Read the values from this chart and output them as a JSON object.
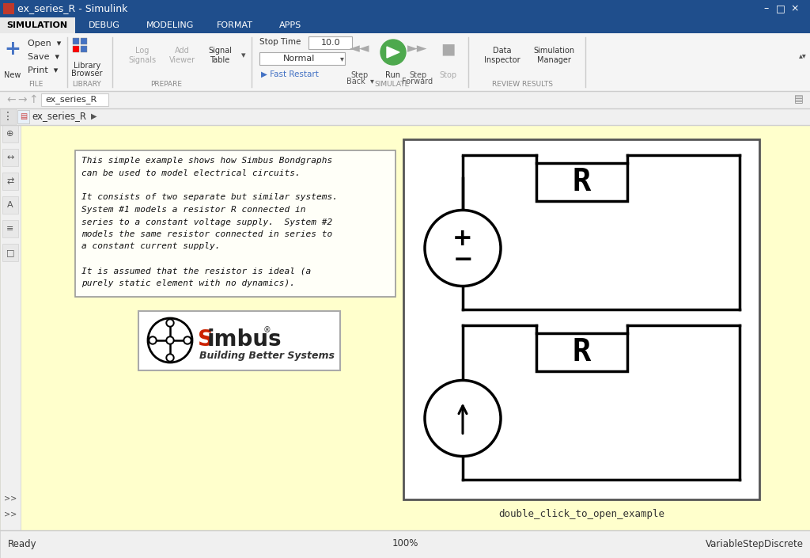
{
  "title_bar_text": "ex_series_R - Simulink",
  "title_bar_bg": "#1f4e8c",
  "window_bg": "#f0f0f0",
  "ribbon_tab_active_bg": "#f0f0f0",
  "ribbon_bg": "#f5f5f5",
  "ribbon_tab_bar_bg": "#1f4e8c",
  "canvas_bg": "#ffffcc",
  "diagram_bg": "#ffffff",
  "text_box_bg": "#fffff8",
  "description_text_line1": "This simple example shows how Simbus Bondgraphs",
  "description_text_line2": "can be used to model electrical circuits.",
  "description_text_line3": "",
  "description_text_line4": "It consists of two separate but similar systems.",
  "description_text_line5": "System #1 models a resistor R connected in",
  "description_text_line6": "series to a constant voltage supply.  System #2",
  "description_text_line7": "models the same resistor connected in series to",
  "description_text_line8": "a constant current supply.",
  "description_text_line9": "",
  "description_text_line10": "It is assumed that the resistor is ideal (a",
  "description_text_line11": "purely static element with no dynamics).",
  "bottom_label": "double_click_to_open_example",
  "status_bar_text": "Ready",
  "status_bar_right": "VariableStepDiscrete",
  "status_bar_center": "100%",
  "tab_label": "ex_series_R",
  "breadcrumb": "ex_series_R",
  "stop_time": "10.0",
  "solver": "Normal",
  "ribbon_tabs": [
    "SIMULATION",
    "DEBUG",
    "MODELING",
    "FORMAT",
    "APPS"
  ],
  "ribbon_tab_active": "SIMULATION"
}
